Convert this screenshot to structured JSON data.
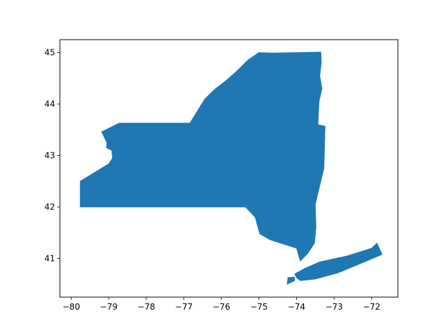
{
  "chart_data": {
    "type": "geo-polygon",
    "title": "",
    "xlabel": "",
    "ylabel": "",
    "xlim": [
      -80.3,
      -71.3
    ],
    "ylim": [
      40.25,
      45.25
    ],
    "x_ticks": [
      {
        "value": -80,
        "label": "−80"
      },
      {
        "value": -79,
        "label": "−79"
      },
      {
        "value": -78,
        "label": "−78"
      },
      {
        "value": -77,
        "label": "−77"
      },
      {
        "value": -76,
        "label": "−76"
      },
      {
        "value": -75,
        "label": "−75"
      },
      {
        "value": -74,
        "label": "−74"
      },
      {
        "value": -73,
        "label": "−73"
      },
      {
        "value": -72,
        "label": "−72"
      }
    ],
    "y_ticks": [
      {
        "value": 41,
        "label": "41"
      },
      {
        "value": 42,
        "label": "42"
      },
      {
        "value": 43,
        "label": "43"
      },
      {
        "value": 44,
        "label": "44"
      },
      {
        "value": 45,
        "label": "45"
      }
    ],
    "grid": false,
    "fill_color": "#1f77b4",
    "shapes": [
      {
        "kind": "mainland",
        "coords": [
          [
            -79.76,
            42.0
          ],
          [
            -79.76,
            42.5
          ],
          [
            -79.0,
            42.84
          ],
          [
            -78.9,
            42.95
          ],
          [
            -78.92,
            43.1
          ],
          [
            -79.06,
            43.15
          ],
          [
            -79.05,
            43.25
          ],
          [
            -79.19,
            43.46
          ],
          [
            -78.72,
            43.63
          ],
          [
            -77.8,
            43.63
          ],
          [
            -76.84,
            43.63
          ],
          [
            -76.44,
            44.1
          ],
          [
            -76.3,
            44.2
          ],
          [
            -76.17,
            44.29
          ],
          [
            -75.9,
            44.44
          ],
          [
            -75.62,
            44.62
          ],
          [
            -75.3,
            44.85
          ],
          [
            -75.0,
            45.0
          ],
          [
            -74.67,
            44.99
          ],
          [
            -74.0,
            45.0
          ],
          [
            -73.35,
            45.01
          ],
          [
            -73.34,
            44.8
          ],
          [
            -73.38,
            44.55
          ],
          [
            -73.32,
            44.3
          ],
          [
            -73.4,
            44.05
          ],
          [
            -73.43,
            43.6
          ],
          [
            -73.24,
            43.57
          ],
          [
            -73.27,
            42.75
          ],
          [
            -73.5,
            42.05
          ],
          [
            -73.48,
            41.62
          ],
          [
            -73.52,
            41.3
          ],
          [
            -73.7,
            41.1
          ],
          [
            -73.9,
            40.95
          ],
          [
            -74.0,
            41.2
          ],
          [
            -74.69,
            41.36
          ],
          [
            -74.98,
            41.48
          ],
          [
            -75.1,
            41.8
          ],
          [
            -75.36,
            42.0
          ]
        ]
      },
      {
        "kind": "long-island",
        "coords": [
          [
            -74.05,
            40.7
          ],
          [
            -73.8,
            40.8
          ],
          [
            -73.4,
            40.93
          ],
          [
            -72.65,
            41.05
          ],
          [
            -72.0,
            41.2
          ],
          [
            -71.86,
            41.3
          ],
          [
            -71.72,
            41.08
          ],
          [
            -72.3,
            40.9
          ],
          [
            -72.9,
            40.72
          ],
          [
            -73.5,
            40.6
          ],
          [
            -73.9,
            40.57
          ],
          [
            -74.0,
            40.63
          ]
        ]
      },
      {
        "kind": "staten-island",
        "coords": [
          [
            -74.23,
            40.63
          ],
          [
            -74.05,
            40.64
          ],
          [
            -74.05,
            40.57
          ],
          [
            -74.25,
            40.5
          ]
        ]
      }
    ]
  }
}
